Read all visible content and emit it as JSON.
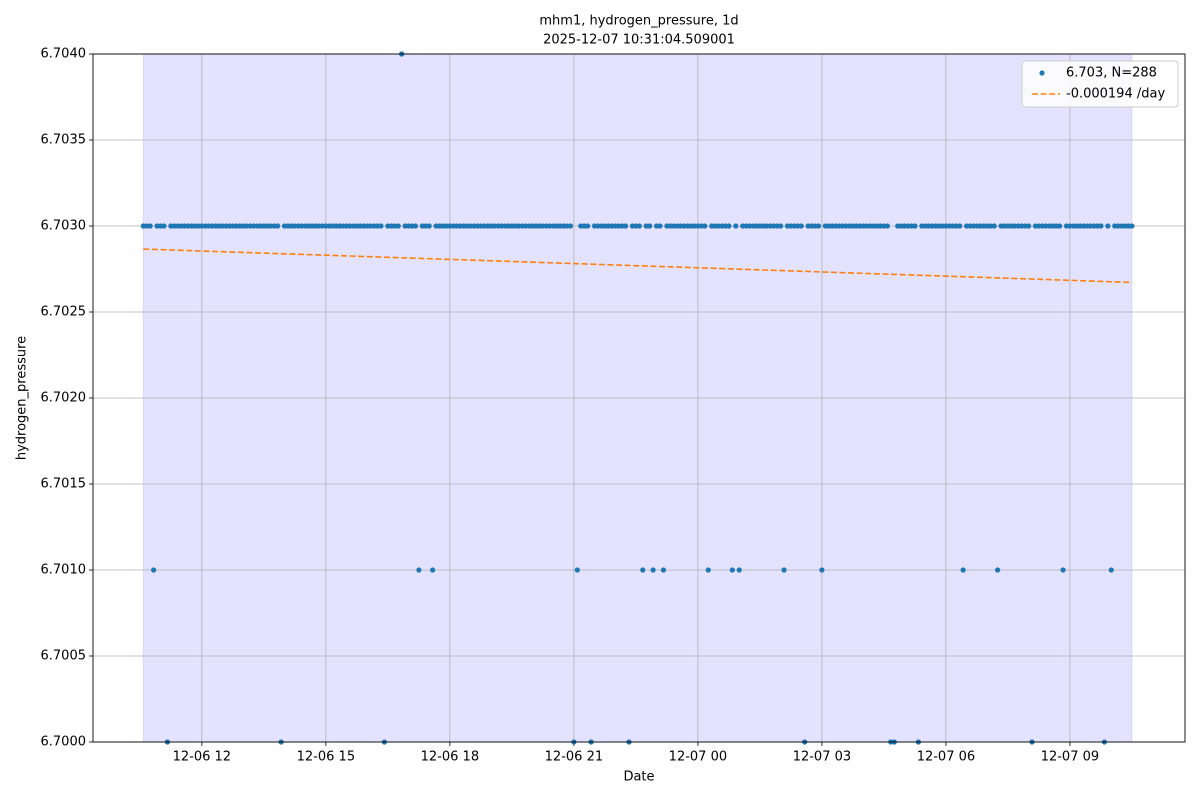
{
  "chart_data": {
    "type": "scatter",
    "title": "mhm1, hydrogen_pressure, 1d",
    "subtitle": "2025-12-07 10:31:04.509001",
    "x_label": "Date",
    "y_label": "hydrogen_pressure",
    "grid": true,
    "legend": "upper right",
    "xlim": [
      562,
      2147
    ],
    "xticks": [
      {
        "value": 720,
        "label": "12-06 12"
      },
      {
        "value": 900,
        "label": "12-06 15"
      },
      {
        "value": 1080,
        "label": "12-06 18"
      },
      {
        "value": 1260,
        "label": "12-06 21"
      },
      {
        "value": 1440,
        "label": "12-07 00"
      },
      {
        "value": 1620,
        "label": "12-07 03"
      },
      {
        "value": 1800,
        "label": "12-07 06"
      },
      {
        "value": 1980,
        "label": "12-07 09"
      }
    ],
    "ylim": [
      6.7,
      6.704
    ],
    "yticks": [
      {
        "value": 6.7,
        "label": "6.7000"
      },
      {
        "value": 6.7005,
        "label": "6.7005"
      },
      {
        "value": 6.701,
        "label": "6.7010"
      },
      {
        "value": 6.7015,
        "label": "6.7015"
      },
      {
        "value": 6.702,
        "label": "6.7020"
      },
      {
        "value": 6.7025,
        "label": "6.7025"
      },
      {
        "value": 6.703,
        "label": "6.7030"
      },
      {
        "value": 6.7035,
        "label": "6.7035"
      },
      {
        "value": 6.704,
        "label": "6.7040"
      }
    ],
    "series": [
      {
        "name": "6.703, N=288",
        "type": "scatter",
        "color": "#1f77b4",
        "x": [
          635,
          640,
          645,
          650,
          655,
          660,
          665,
          670,
          675,
          680,
          685,
          690,
          695,
          700,
          705,
          710,
          715,
          720,
          725,
          730,
          735,
          740,
          745,
          750,
          755,
          760,
          765,
          770,
          775,
          780,
          785,
          790,
          795,
          800,
          805,
          810,
          815,
          820,
          825,
          830,
          835,
          840,
          845,
          850,
          855,
          860,
          865,
          870,
          875,
          880,
          885,
          890,
          895,
          900,
          905,
          910,
          915,
          920,
          925,
          930,
          935,
          940,
          945,
          950,
          955,
          960,
          965,
          970,
          975,
          980,
          985,
          990,
          995,
          1000,
          1005,
          1010,
          1015,
          1020,
          1025,
          1030,
          1035,
          1040,
          1045,
          1050,
          1055,
          1060,
          1065,
          1070,
          1075,
          1080,
          1085,
          1090,
          1095,
          1100,
          1105,
          1110,
          1115,
          1120,
          1125,
          1130,
          1135,
          1140,
          1145,
          1150,
          1155,
          1160,
          1165,
          1170,
          1175,
          1180,
          1185,
          1190,
          1195,
          1200,
          1205,
          1210,
          1215,
          1220,
          1225,
          1230,
          1235,
          1240,
          1245,
          1250,
          1255,
          1260,
          1265,
          1270,
          1275,
          1280,
          1285,
          1290,
          1295,
          1300,
          1305,
          1310,
          1315,
          1320,
          1325,
          1330,
          1335,
          1340,
          1345,
          1350,
          1355,
          1360,
          1365,
          1370,
          1375,
          1380,
          1385,
          1390,
          1395,
          1400,
          1405,
          1410,
          1415,
          1420,
          1425,
          1430,
          1435,
          1440,
          1445,
          1450,
          1455,
          1460,
          1465,
          1470,
          1475,
          1480,
          1485,
          1490,
          1495,
          1500,
          1505,
          1510,
          1515,
          1520,
          1525,
          1530,
          1535,
          1540,
          1545,
          1550,
          1555,
          1560,
          1565,
          1570,
          1575,
          1580,
          1585,
          1590,
          1595,
          1600,
          1605,
          1610,
          1615,
          1620,
          1625,
          1630,
          1635,
          1640,
          1645,
          1650,
          1655,
          1660,
          1665,
          1670,
          1675,
          1680,
          1685,
          1690,
          1695,
          1700,
          1705,
          1710,
          1715,
          1720,
          1725,
          1730,
          1735,
          1740,
          1745,
          1750,
          1755,
          1760,
          1765,
          1770,
          1775,
          1780,
          1785,
          1790,
          1795,
          1800,
          1805,
          1810,
          1815,
          1820,
          1825,
          1830,
          1835,
          1840,
          1845,
          1850,
          1855,
          1860,
          1865,
          1870,
          1875,
          1880,
          1885,
          1890,
          1895,
          1900,
          1905,
          1910,
          1915,
          1920,
          1925,
          1930,
          1935,
          1940,
          1945,
          1950,
          1955,
          1960,
          1965,
          1970,
          1975,
          1980,
          1985,
          1990,
          1995,
          2000,
          2005,
          2010,
          2015,
          2020,
          2025,
          2030,
          2035,
          2040,
          2045,
          2050,
          2055,
          2060,
          2065,
          2070
        ],
        "values": [
          6.703,
          6.703,
          6.703,
          6.701,
          6.703,
          6.703,
          6.703,
          6.7,
          6.703,
          6.703,
          6.703,
          6.703,
          6.703,
          6.703,
          6.703,
          6.703,
          6.703,
          6.703,
          6.703,
          6.703,
          6.703,
          6.703,
          6.703,
          6.703,
          6.703,
          6.703,
          6.703,
          6.703,
          6.703,
          6.703,
          6.703,
          6.703,
          6.703,
          6.703,
          6.703,
          6.703,
          6.703,
          6.703,
          6.703,
          6.703,
          6.7,
          6.703,
          6.703,
          6.703,
          6.703,
          6.703,
          6.703,
          6.703,
          6.703,
          6.703,
          6.703,
          6.703,
          6.703,
          6.703,
          6.703,
          6.703,
          6.703,
          6.703,
          6.703,
          6.703,
          6.703,
          6.703,
          6.703,
          6.703,
          6.703,
          6.703,
          6.703,
          6.703,
          6.703,
          6.703,
          6.7,
          6.703,
          6.703,
          6.703,
          6.703,
          6.704,
          6.703,
          6.703,
          6.703,
          6.703,
          6.701,
          6.703,
          6.703,
          6.703,
          6.701,
          6.703,
          6.703,
          6.703,
          6.703,
          6.703,
          6.703,
          6.703,
          6.703,
          6.703,
          6.703,
          6.703,
          6.703,
          6.703,
          6.703,
          6.703,
          6.703,
          6.703,
          6.703,
          6.703,
          6.703,
          6.703,
          6.703,
          6.703,
          6.703,
          6.703,
          6.703,
          6.703,
          6.703,
          6.703,
          6.703,
          6.703,
          6.703,
          6.703,
          6.703,
          6.703,
          6.703,
          6.703,
          6.703,
          6.703,
          6.703,
          6.7,
          6.701,
          6.703,
          6.703,
          6.703,
          6.7,
          6.703,
          6.703,
          6.703,
          6.703,
          6.703,
          6.703,
          6.703,
          6.703,
          6.703,
          6.703,
          6.7,
          6.703,
          6.703,
          6.703,
          6.701,
          6.703,
          6.703,
          6.701,
          6.703,
          6.703,
          6.701,
          6.703,
          6.703,
          6.703,
          6.703,
          6.703,
          6.703,
          6.703,
          6.703,
          6.703,
          6.703,
          6.703,
          6.703,
          6.701,
          6.703,
          6.703,
          6.703,
          6.703,
          6.703,
          6.703,
          6.701,
          6.703,
          6.701,
          6.703,
          6.703,
          6.703,
          6.703,
          6.703,
          6.703,
          6.703,
          6.703,
          6.703,
          6.703,
          6.703,
          6.703,
          6.701,
          6.703,
          6.703,
          6.703,
          6.703,
          6.703,
          6.7,
          6.703,
          6.703,
          6.703,
          6.703,
          6.701,
          6.703,
          6.703,
          6.703,
          6.703,
          6.703,
          6.703,
          6.703,
          6.703,
          6.703,
          6.703,
          6.703,
          6.703,
          6.703,
          6.703,
          6.703,
          6.703,
          6.703,
          6.703,
          6.703,
          6.7,
          6.7,
          6.703,
          6.703,
          6.703,
          6.703,
          6.703,
          6.703,
          6.7,
          6.703,
          6.703,
          6.703,
          6.703,
          6.703,
          6.703,
          6.703,
          6.703,
          6.703,
          6.703,
          6.703,
          6.703,
          6.701,
          6.703,
          6.703,
          6.703,
          6.703,
          6.703,
          6.703,
          6.703,
          6.703,
          6.703,
          6.701,
          6.703,
          6.703,
          6.703,
          6.703,
          6.703,
          6.703,
          6.703,
          6.703,
          6.703,
          6.7,
          6.703,
          6.703,
          6.703,
          6.703,
          6.703,
          6.703,
          6.703,
          6.703,
          6.701,
          6.703,
          6.703,
          6.703,
          6.703,
          6.703,
          6.703,
          6.703,
          6.703,
          6.703,
          6.703,
          6.703,
          6.7,
          6.703,
          6.701,
          6.703,
          6.703,
          6.703,
          6.703,
          6.703,
          6.703
        ]
      },
      {
        "name": "-0.000194 /day",
        "type": "line",
        "color": "#ff7f0e",
        "x": [
          635,
          2070
        ],
        "values": [
          6.702866,
          6.702672
        ]
      }
    ]
  }
}
